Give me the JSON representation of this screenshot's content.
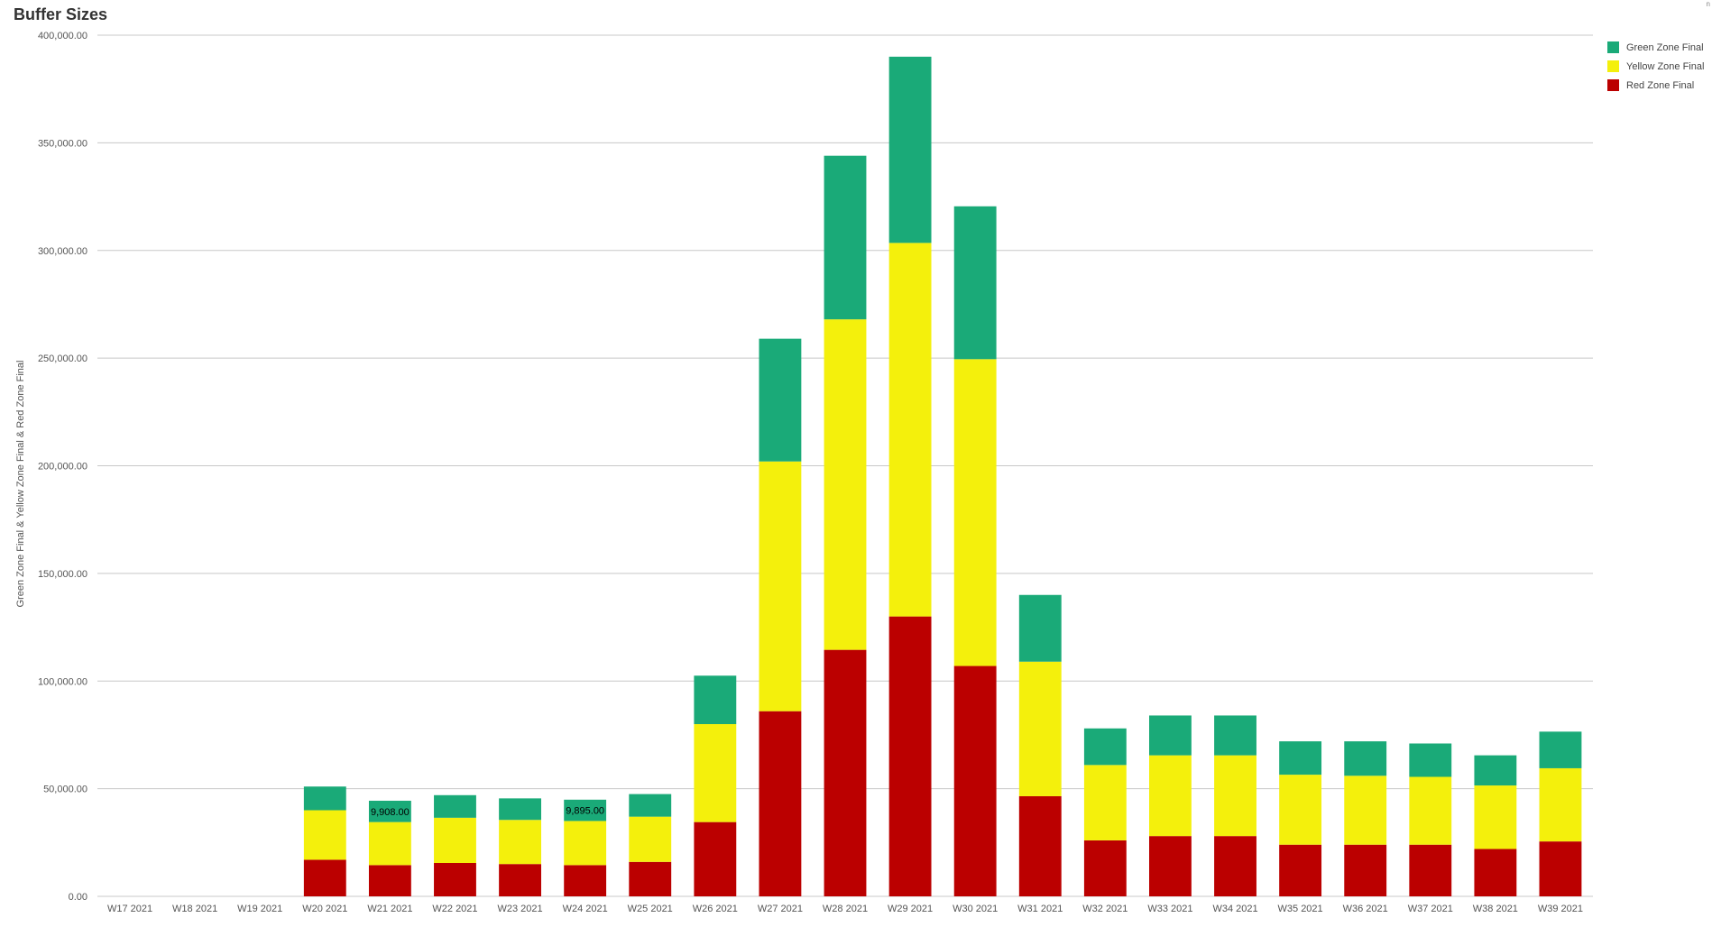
{
  "title": "Buffer Sizes",
  "corner_label": "n",
  "colors": {
    "green": "#1aaa78",
    "yellow": "#f4f00c",
    "red": "#bb0000",
    "grid": "#c8c8c8"
  },
  "chart_data": {
    "type": "bar",
    "stacked": true,
    "title": "Buffer Sizes",
    "ylabel": "Green Zone Final & Yellow Zone Final & Red Zone Final",
    "xlabel": "",
    "ylim": [
      0,
      400000
    ],
    "yticks": [
      0,
      50000,
      100000,
      150000,
      200000,
      250000,
      300000,
      350000,
      400000
    ],
    "ytick_labels": [
      "0.00",
      "50,000.00",
      "100,000.00",
      "150,000.00",
      "200,000.00",
      "250,000.00",
      "300,000.00",
      "350,000.00",
      "400,000.00"
    ],
    "grid": true,
    "legend_position": "top-right",
    "categories": [
      "W17 2021",
      "W18 2021",
      "W19 2021",
      "W20 2021",
      "W21 2021",
      "W22 2021",
      "W23 2021",
      "W24 2021",
      "W25 2021",
      "W26 2021",
      "W27 2021",
      "W28 2021",
      "W29 2021",
      "W30 2021",
      "W31 2021",
      "W32 2021",
      "W33 2021",
      "W34 2021",
      "W35 2021",
      "W36 2021",
      "W37 2021",
      "W38 2021",
      "W39 2021"
    ],
    "series": [
      {
        "name": "Red Zone Final",
        "color": "#bb0000",
        "values": [
          0,
          0,
          0,
          17000,
          14500,
          15500,
          15000,
          14500,
          16000,
          34500,
          86000,
          114500,
          130000,
          107000,
          46500,
          26000,
          28000,
          28000,
          24000,
          24000,
          24000,
          22000,
          25500
        ]
      },
      {
        "name": "Yellow Zone Final",
        "color": "#f4f00c",
        "values": [
          0,
          0,
          0,
          23000,
          20000,
          21000,
          20500,
          20500,
          21000,
          45500,
          116000,
          153500,
          173500,
          142500,
          62500,
          35000,
          37500,
          37500,
          32500,
          32000,
          31500,
          29500,
          34000
        ]
      },
      {
        "name": "Green Zone Final",
        "color": "#1aaa78",
        "values": [
          0,
          0,
          0,
          11000,
          9908,
          10500,
          10000,
          9895,
          10500,
          22500,
          57000,
          76000,
          86500,
          71000,
          31000,
          17000,
          18500,
          18500,
          15500,
          16000,
          15500,
          14000,
          17000
        ]
      }
    ],
    "data_labels": [
      {
        "category": "W21 2021",
        "series": "Green Zone Final",
        "text": "9,908.00"
      },
      {
        "category": "W24 2021",
        "series": "Green Zone Final",
        "text": "9,895.00"
      }
    ]
  }
}
